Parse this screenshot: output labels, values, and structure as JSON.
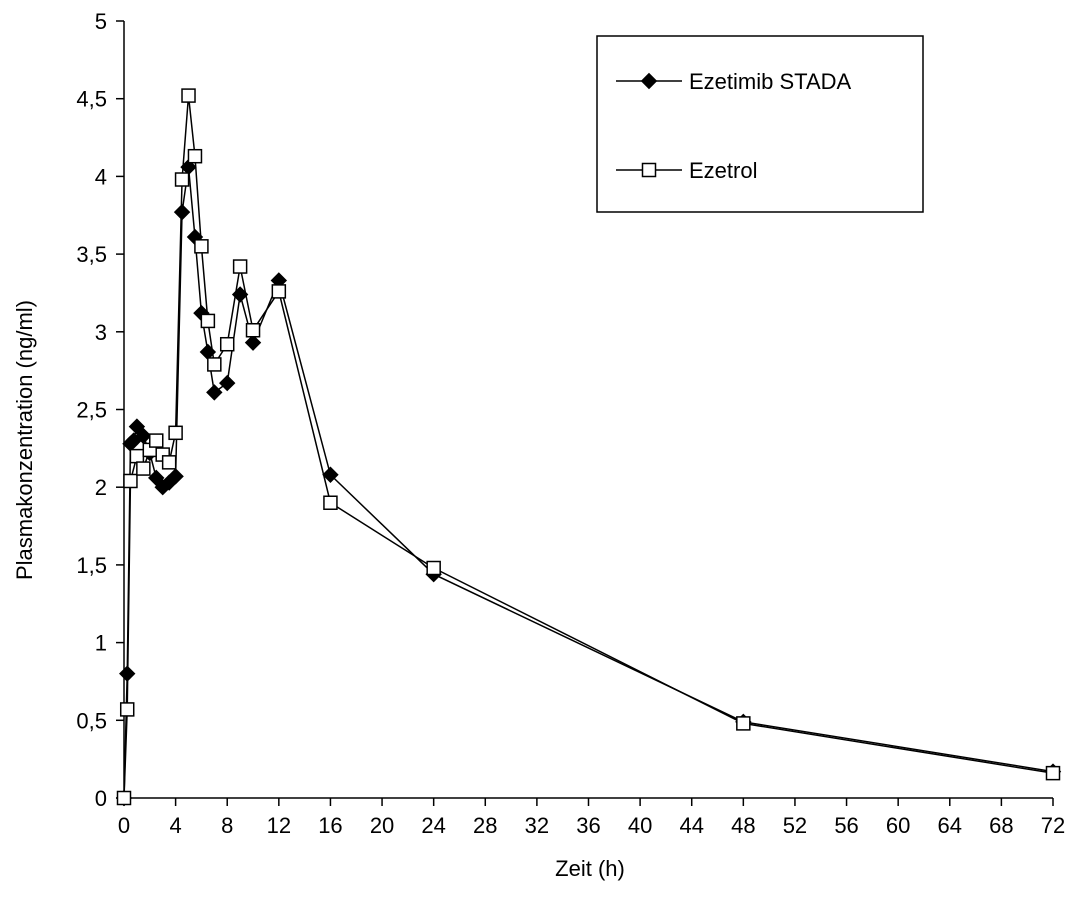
{
  "chart_data": {
    "type": "line",
    "title": "",
    "xlabel": "Zeit (h)",
    "ylabel": "Plasmakonzentration (ng/ml)",
    "xlim": [
      0,
      72
    ],
    "ylim": [
      0,
      5
    ],
    "x_ticks": [
      0,
      4,
      8,
      12,
      16,
      20,
      24,
      28,
      32,
      36,
      40,
      44,
      48,
      52,
      56,
      60,
      64,
      68,
      72
    ],
    "y_ticks": [
      0,
      0.5,
      1,
      1.5,
      2,
      2.5,
      3,
      3.5,
      4,
      4.5,
      5
    ],
    "y_tick_labels": [
      "0",
      "0,5",
      "1",
      "1,5",
      "2",
      "2,5",
      "3",
      "3,5",
      "4",
      "4,5",
      "5"
    ],
    "grid": false,
    "legend_position": "top-right",
    "series": [
      {
        "name": "Ezetimib STADA",
        "marker": "diamond-filled",
        "color": "#000000",
        "x": [
          0,
          0.25,
          0.5,
          0.75,
          1,
          1.5,
          2,
          2.5,
          3,
          3.5,
          4,
          4.5,
          5,
          5.5,
          6,
          6.5,
          7,
          8,
          9,
          10,
          12,
          16,
          24,
          48,
          72
        ],
        "y": [
          0,
          0.8,
          2.28,
          2.3,
          2.39,
          2.33,
          2.22,
          2.06,
          2.0,
          2.03,
          2.07,
          3.77,
          4.06,
          3.61,
          3.12,
          2.87,
          2.61,
          2.67,
          3.24,
          2.93,
          3.33,
          2.08,
          1.44,
          0.49,
          0.17
        ]
      },
      {
        "name": "Ezetrol",
        "marker": "square-open",
        "color": "#000000",
        "x": [
          0,
          0.25,
          0.5,
          1,
          1.5,
          2,
          2.5,
          3,
          3.5,
          4,
          4.5,
          5,
          5.5,
          6,
          6.5,
          7,
          8,
          9,
          10,
          12,
          16,
          24,
          48,
          72
        ],
        "y": [
          0,
          0.57,
          2.04,
          2.2,
          2.12,
          2.24,
          2.3,
          2.21,
          2.16,
          2.35,
          3.98,
          4.52,
          4.13,
          3.55,
          3.07,
          2.79,
          2.92,
          3.42,
          3.01,
          3.26,
          1.9,
          1.48,
          0.48,
          0.16
        ]
      }
    ]
  }
}
